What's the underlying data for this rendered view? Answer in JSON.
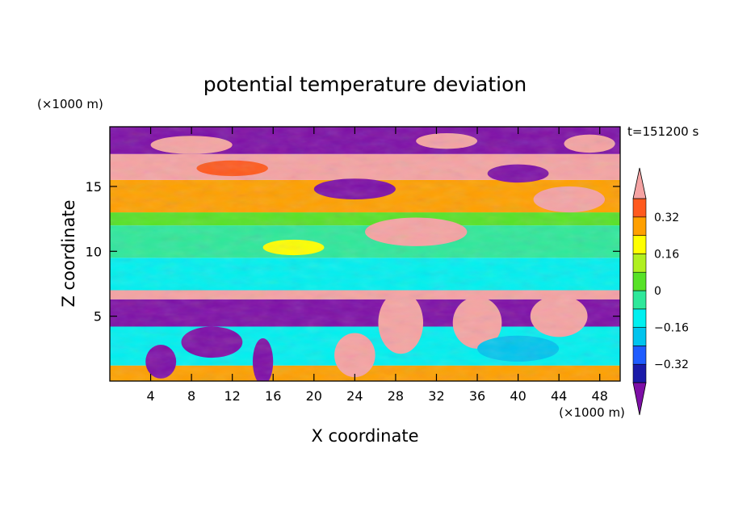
{
  "chart_data": {
    "type": "heatmap",
    "title": "potential temperature deviation",
    "time_label": "t=151200 s",
    "xlabel": "X coordinate",
    "ylabel": "Z coordinate",
    "x_unit": "(×1000 m)",
    "y_unit": "(×1000 m)",
    "xlim": [
      0,
      50
    ],
    "ylim": [
      0,
      19.6
    ],
    "x_ticks": [
      4,
      8,
      12,
      16,
      20,
      24,
      28,
      32,
      36,
      40,
      44,
      48
    ],
    "y_ticks": [
      5,
      10,
      15
    ],
    "colorbar": {
      "levels": [
        -0.4,
        -0.32,
        -0.24,
        -0.16,
        -0.08,
        0,
        0.08,
        0.16,
        0.24,
        0.32,
        0.4
      ],
      "tick_labels": [
        "0.32",
        "0.16",
        "0",
        "−0.16",
        "−0.32"
      ],
      "tick_values": [
        0.32,
        0.16,
        0,
        -0.16,
        -0.32
      ],
      "colors": [
        "#7d0fa6",
        "#1a1aa8",
        "#1f5cff",
        "#00c4ee",
        "#00f0f0",
        "#2ee89a",
        "#57e227",
        "#b0f020",
        "#ffff00",
        "#ffa000",
        "#ff5a1e",
        "#ff2020",
        "#f5a3a3"
      ],
      "extend": "both"
    },
    "bands": [
      {
        "z_range": [
          17,
          19.6
        ],
        "description": "mixed, mostly pink and purple"
      },
      {
        "z_range": [
          13,
          17
        ],
        "description": "mixed, orange-yellow-green"
      },
      {
        "z_range": [
          7,
          13
        ],
        "description": "mostly green and cyan, near zero"
      },
      {
        "z_range": [
          5,
          7
        ],
        "description": "pink positive band over purple negative"
      },
      {
        "z_range": [
          0,
          5
        ],
        "description": "mixed cyan, yellow, red with pink plumes"
      }
    ]
  }
}
